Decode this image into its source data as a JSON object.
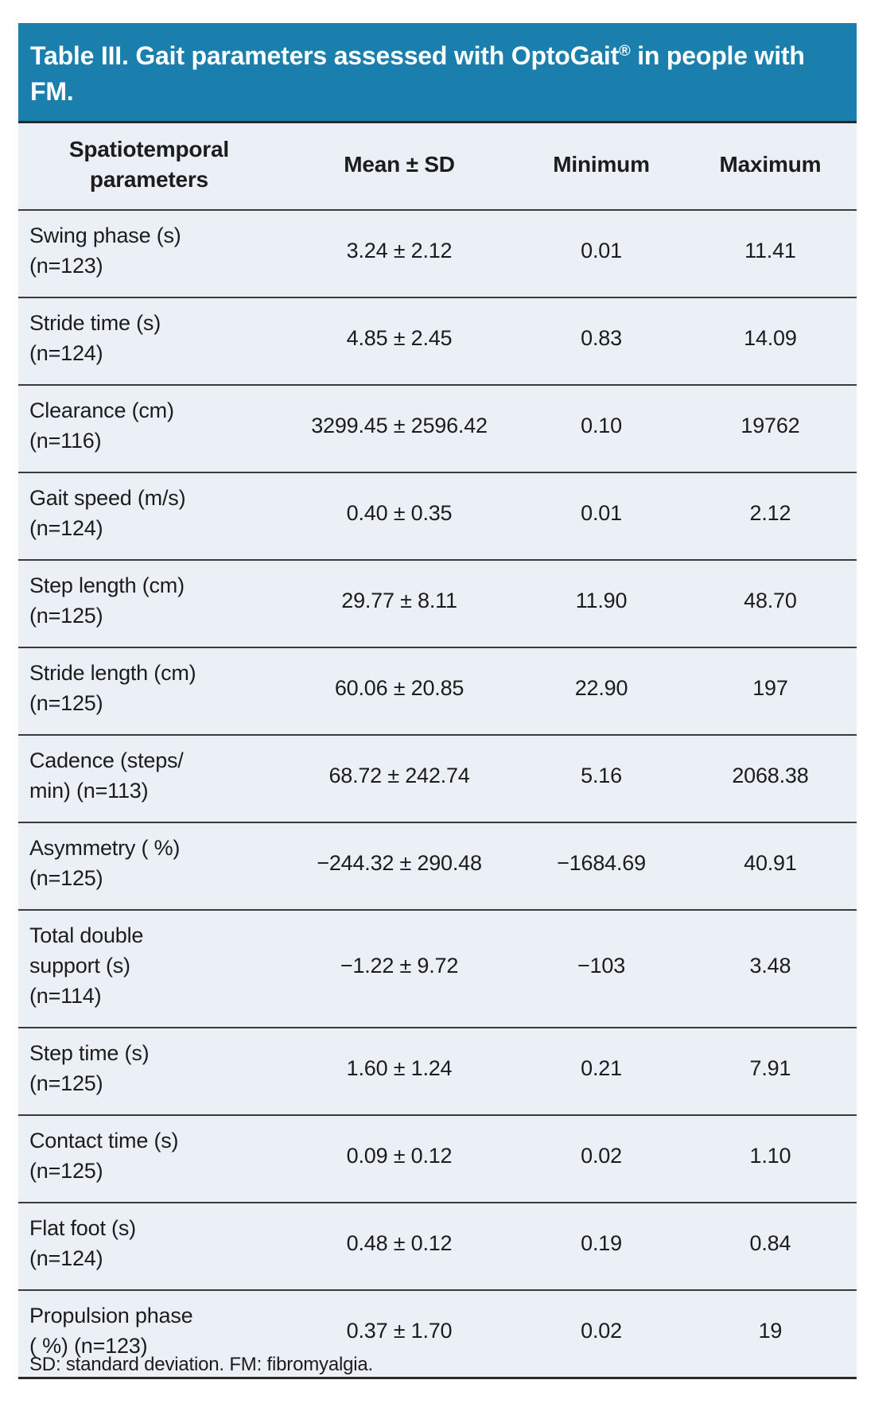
{
  "title": {
    "text_main": "Table III. Gait parameters assessed with OptoGait",
    "registered_mark": "®",
    "text_end": " in people with FM."
  },
  "table": {
    "columns": [
      "Spatiotemporal\nparameters",
      "Mean ± SD",
      "Minimum",
      "Maximum"
    ],
    "rows": [
      {
        "parameter": "Swing phase (s)\n(n=123)",
        "mean_sd": "3.24 ± 2.12",
        "minimum": "0.01",
        "maximum": "11.41"
      },
      {
        "parameter": "Stride time (s)\n(n=124)",
        "mean_sd": "4.85 ± 2.45",
        "minimum": "0.83",
        "maximum": "14.09"
      },
      {
        "parameter": "Clearance (cm)\n(n=116)",
        "mean_sd": "3299.45 ± 2596.42",
        "minimum": "0.10",
        "maximum": "19762"
      },
      {
        "parameter": "Gait speed (m/s)\n(n=124)",
        "mean_sd": "0.40 ± 0.35",
        "minimum": "0.01",
        "maximum": "2.12"
      },
      {
        "parameter": "Step length (cm)\n(n=125)",
        "mean_sd": "29.77 ± 8.11",
        "minimum": "11.90",
        "maximum": "48.70"
      },
      {
        "parameter": "Stride length (cm)\n(n=125)",
        "mean_sd": "60.06 ± 20.85",
        "minimum": "22.90",
        "maximum": "197"
      },
      {
        "parameter": "Cadence (steps/\nmin) (n=113)",
        "mean_sd": "68.72 ± 242.74",
        "minimum": "5.16",
        "maximum": "2068.38"
      },
      {
        "parameter": "Asymmetry ( %)\n(n=125)",
        "mean_sd": "−244.32 ± 290.48",
        "minimum": "−1684.69",
        "maximum": "40.91"
      },
      {
        "parameter": "Total double\nsupport (s)\n(n=114)",
        "mean_sd": "−1.22 ± 9.72",
        "minimum": "−103",
        "maximum": "3.48"
      },
      {
        "parameter": "Step time (s)\n(n=125)",
        "mean_sd": "1.60 ± 1.24",
        "minimum": "0.21",
        "maximum": "7.91"
      },
      {
        "parameter": "Contact time (s)\n(n=125)",
        "mean_sd": "0.09 ± 0.12",
        "minimum": "0.02",
        "maximum": "1.10"
      },
      {
        "parameter": "Flat foot (s)\n(n=124)",
        "mean_sd": "0.48 ± 0.12",
        "minimum": "0.19",
        "maximum": "0.84"
      },
      {
        "parameter": "Propulsion phase\n( %) (n=123)",
        "mean_sd": "0.37 ± 1.70",
        "minimum": "0.02",
        "maximum": "19"
      }
    ]
  },
  "footnote": "SD: standard deviation. FM: fibromyalgia.",
  "colors": {
    "header_bg": "#1b7fad",
    "header_text": "#ffffff",
    "row_bg": "#ebeff6",
    "border": "#3a3a3a",
    "body_text": "#1c1c1c"
  }
}
